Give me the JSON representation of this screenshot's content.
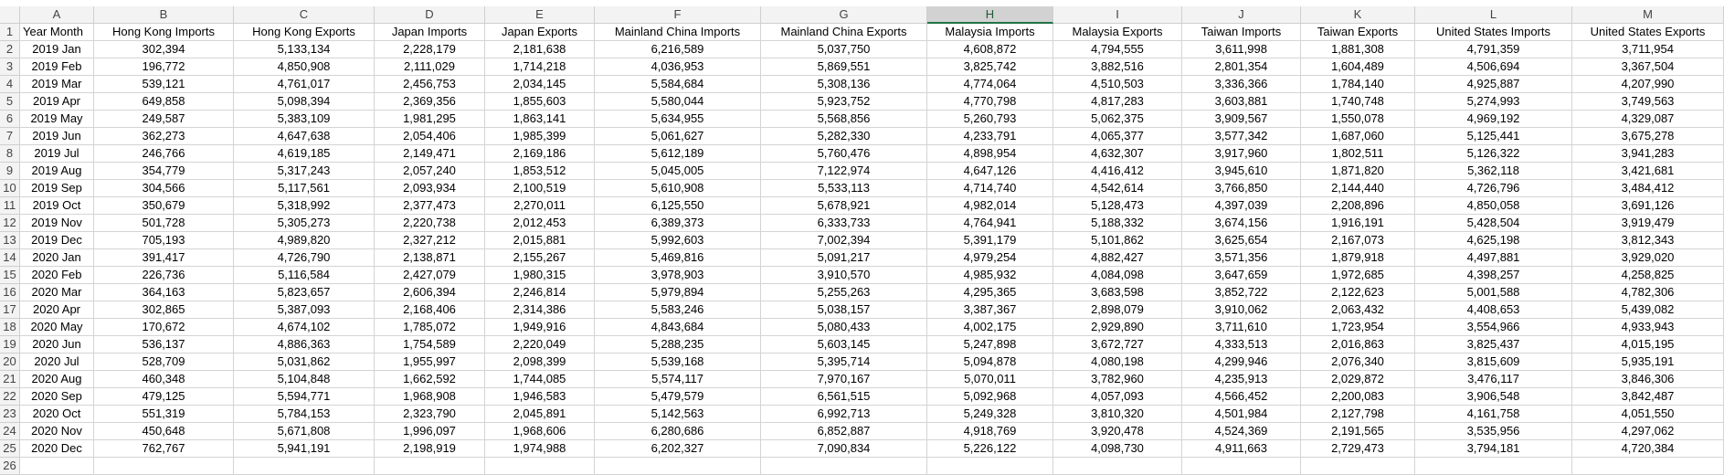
{
  "column_letters": [
    "A",
    "B",
    "C",
    "D",
    "E",
    "F",
    "G",
    "H",
    "I",
    "J",
    "K",
    "L",
    "M"
  ],
  "row_numbers": [
    1,
    2,
    3,
    4,
    5,
    6,
    7,
    8,
    9,
    10,
    11,
    12,
    13,
    14,
    15,
    16,
    17,
    18,
    19,
    20,
    21,
    22,
    23,
    24,
    25,
    26
  ],
  "table": {
    "header": [
      "Year  Month",
      "Hong Kong Imports",
      "Hong Kong Exports",
      "Japan Imports",
      "Japan Exports",
      "Mainland China Imports",
      "Mainland China Exports",
      "Malaysia Imports",
      "Malaysia Exports",
      "Taiwan Imports",
      "Taiwan Exports",
      "United States Imports",
      "United States Exports"
    ],
    "rows": [
      [
        "2019 Jan",
        "302,394",
        "5,133,134",
        "2,228,179",
        "2,181,638",
        "6,216,589",
        "5,037,750",
        "4,608,872",
        "4,794,555",
        "3,611,998",
        "1,881,308",
        "4,791,359",
        "3,711,954"
      ],
      [
        "2019 Feb",
        "196,772",
        "4,850,908",
        "2,111,029",
        "1,714,218",
        "4,036,953",
        "5,869,551",
        "3,825,742",
        "3,882,516",
        "2,801,354",
        "1,604,489",
        "4,506,694",
        "3,367,504"
      ],
      [
        "2019 Mar",
        "539,121",
        "4,761,017",
        "2,456,753",
        "2,034,145",
        "5,584,684",
        "5,308,136",
        "4,774,064",
        "4,510,503",
        "3,336,366",
        "1,784,140",
        "4,925,887",
        "4,207,990"
      ],
      [
        "2019 Apr",
        "649,858",
        "5,098,394",
        "2,369,356",
        "1,855,603",
        "5,580,044",
        "5,923,752",
        "4,770,798",
        "4,817,283",
        "3,603,881",
        "1,740,748",
        "5,274,993",
        "3,749,563"
      ],
      [
        "2019 May",
        "249,587",
        "5,383,109",
        "1,981,295",
        "1,863,141",
        "5,634,955",
        "5,568,856",
        "5,260,793",
        "5,062,375",
        "3,909,567",
        "1,550,078",
        "4,969,192",
        "4,329,087"
      ],
      [
        "2019 Jun",
        "362,273",
        "4,647,638",
        "2,054,406",
        "1,985,399",
        "5,061,627",
        "5,282,330",
        "4,233,791",
        "4,065,377",
        "3,577,342",
        "1,687,060",
        "5,125,441",
        "3,675,278"
      ],
      [
        "2019 Jul",
        "246,766",
        "4,619,185",
        "2,149,471",
        "2,169,186",
        "5,612,189",
        "5,760,476",
        "4,898,954",
        "4,632,307",
        "3,917,960",
        "1,802,511",
        "5,126,322",
        "3,941,283"
      ],
      [
        "2019 Aug",
        "354,779",
        "5,317,243",
        "2,057,240",
        "1,853,512",
        "5,045,005",
        "7,122,974",
        "4,647,126",
        "4,416,412",
        "3,945,610",
        "1,871,820",
        "5,362,118",
        "3,421,681"
      ],
      [
        "2019 Sep",
        "304,566",
        "5,117,561",
        "2,093,934",
        "2,100,519",
        "5,610,908",
        "5,533,113",
        "4,714,740",
        "4,542,614",
        "3,766,850",
        "2,144,440",
        "4,726,796",
        "3,484,412"
      ],
      [
        "2019 Oct",
        "350,679",
        "5,318,992",
        "2,377,473",
        "2,270,011",
        "6,125,550",
        "5,678,921",
        "4,982,014",
        "5,128,473",
        "4,397,039",
        "2,208,896",
        "4,850,058",
        "3,691,126"
      ],
      [
        "2019 Nov",
        "501,728",
        "5,305,273",
        "2,220,738",
        "2,012,453",
        "6,389,373",
        "6,333,733",
        "4,764,941",
        "5,188,332",
        "3,674,156",
        "1,916,191",
        "5,428,504",
        "3,919,479"
      ],
      [
        "2019 Dec",
        "705,193",
        "4,989,820",
        "2,327,212",
        "2,015,881",
        "5,992,603",
        "7,002,394",
        "5,391,179",
        "5,101,862",
        "3,625,654",
        "2,167,073",
        "4,625,198",
        "3,812,343"
      ],
      [
        "2020 Jan",
        "391,417",
        "4,726,790",
        "2,138,871",
        "2,155,267",
        "5,469,816",
        "5,091,217",
        "4,979,254",
        "4,882,427",
        "3,571,356",
        "1,879,918",
        "4,497,881",
        "3,929,020"
      ],
      [
        "2020 Feb",
        "226,736",
        "5,116,584",
        "2,427,079",
        "1,980,315",
        "3,978,903",
        "3,910,570",
        "4,985,932",
        "4,084,098",
        "3,647,659",
        "1,972,685",
        "4,398,257",
        "4,258,825"
      ],
      [
        "2020 Mar",
        "364,163",
        "5,823,657",
        "2,606,394",
        "2,246,814",
        "5,979,894",
        "5,255,263",
        "4,295,365",
        "3,683,598",
        "3,852,722",
        "2,122,623",
        "5,001,588",
        "4,782,306"
      ],
      [
        "2020 Apr",
        "302,865",
        "5,387,093",
        "2,168,406",
        "2,314,386",
        "5,583,246",
        "5,038,157",
        "3,387,367",
        "2,898,079",
        "3,910,062",
        "2,063,432",
        "4,408,653",
        "5,439,082"
      ],
      [
        "2020 May",
        "170,672",
        "4,674,102",
        "1,785,072",
        "1,949,916",
        "4,843,684",
        "5,080,433",
        "4,002,175",
        "2,929,890",
        "3,711,610",
        "1,723,954",
        "3,554,966",
        "4,933,943"
      ],
      [
        "2020 Jun",
        "536,137",
        "4,886,363",
        "1,754,589",
        "2,220,049",
        "5,288,235",
        "5,603,145",
        "5,247,898",
        "3,672,727",
        "4,333,513",
        "2,016,863",
        "3,825,437",
        "4,015,195"
      ],
      [
        "2020 Jul",
        "528,709",
        "5,031,862",
        "1,955,997",
        "2,098,399",
        "5,539,168",
        "5,395,714",
        "5,094,878",
        "4,080,198",
        "4,299,946",
        "2,076,340",
        "3,815,609",
        "5,935,191"
      ],
      [
        "2020 Aug",
        "460,348",
        "5,104,848",
        "1,662,592",
        "1,744,085",
        "5,574,117",
        "7,970,167",
        "5,070,011",
        "3,782,960",
        "4,235,913",
        "2,029,872",
        "3,476,117",
        "3,846,306"
      ],
      [
        "2020 Sep",
        "479,125",
        "5,594,771",
        "1,968,908",
        "1,946,583",
        "5,479,579",
        "6,561,515",
        "5,092,968",
        "4,057,093",
        "4,566,452",
        "2,200,083",
        "3,906,548",
        "3,842,487"
      ],
      [
        "2020 Oct",
        "551,319",
        "5,784,153",
        "2,323,790",
        "2,045,891",
        "5,142,563",
        "6,992,713",
        "5,249,328",
        "3,810,320",
        "4,501,984",
        "2,127,798",
        "4,161,758",
        "4,051,550"
      ],
      [
        "2020 Nov",
        "450,648",
        "5,671,808",
        "1,996,097",
        "1,968,606",
        "6,280,686",
        "6,852,887",
        "4,918,769",
        "3,920,478",
        "4,524,369",
        "2,191,565",
        "3,535,956",
        "4,297,062"
      ],
      [
        "2020 Dec",
        "762,767",
        "5,941,191",
        "2,198,919",
        "1,974,988",
        "6,202,327",
        "7,090,834",
        "5,226,122",
        "4,098,730",
        "4,911,663",
        "2,729,473",
        "3,794,181",
        "4,720,384"
      ]
    ]
  }
}
